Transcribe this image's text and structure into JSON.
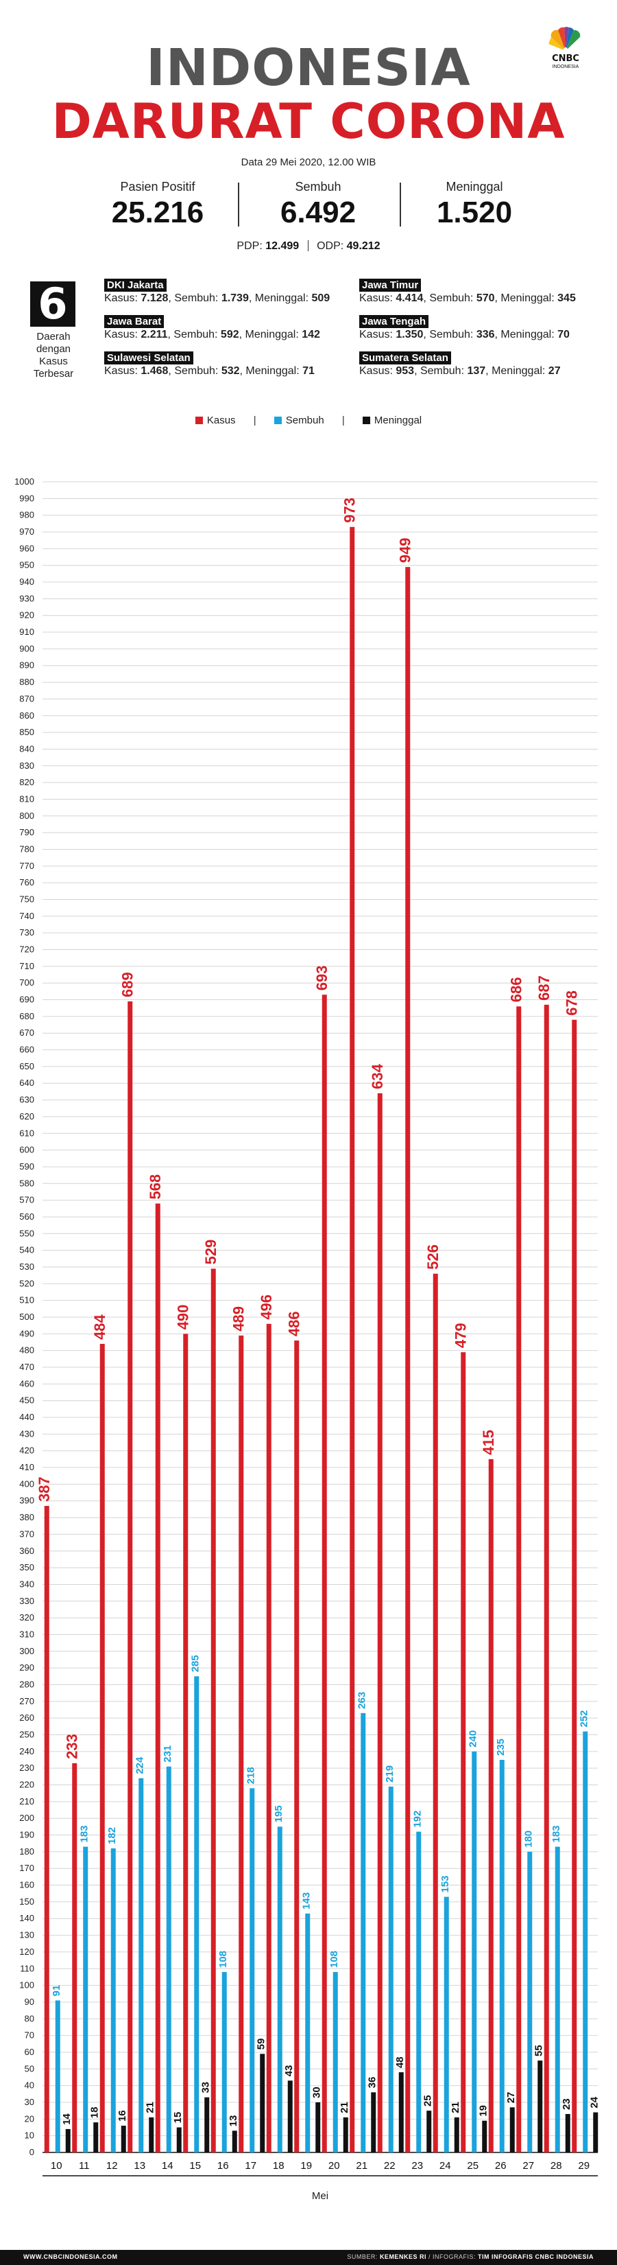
{
  "header": {
    "title_line1": "INDONESIA",
    "title_line2": "DARURAT CORONA",
    "date": "Data 29 Mei 2020, 12.00 WIB",
    "logo_text": "CNBC",
    "logo_subtext": "INDONESIA"
  },
  "stats": [
    {
      "label": "Pasien Positif",
      "value": "25.216"
    },
    {
      "label": "Sembuh",
      "value": "6.492"
    },
    {
      "label": "Meninggal",
      "value": "1.520"
    }
  ],
  "pdp_label": "PDP:",
  "pdp_value": "12.499",
  "odp_label": "ODP:",
  "odp_value": "49.212",
  "regions_count": "6",
  "regions_caption": [
    "Daerah",
    "dengan",
    "Kasus",
    "Terbesar"
  ],
  "regions": [
    {
      "name": "DKI Jakarta",
      "kasus": "7.128",
      "sembuh": "1.739",
      "meninggal": "509"
    },
    {
      "name": "Jawa Timur",
      "kasus": "4.414",
      "sembuh": "570",
      "meninggal": "345"
    },
    {
      "name": "Jawa Barat",
      "kasus": "2.211",
      "sembuh": "592",
      "meninggal": "142"
    },
    {
      "name": "Jawa Tengah",
      "kasus": "1.350",
      "sembuh": "336",
      "meninggal": "70"
    },
    {
      "name": "Sulawesi Selatan",
      "kasus": "1.468",
      "sembuh": "532",
      "meninggal": "71"
    },
    {
      "name": "Sumatera Selatan",
      "kasus": "953",
      "sembuh": "137",
      "meninggal": "27"
    }
  ],
  "region_labels": {
    "kasus": "Kasus:",
    "sembuh": "Sembuh:",
    "meninggal": "Meninggal:"
  },
  "chart_data": {
    "type": "bar",
    "categories": [
      "10",
      "11",
      "12",
      "13",
      "14",
      "15",
      "16",
      "17",
      "18",
      "19",
      "20",
      "21",
      "22",
      "23",
      "24",
      "25",
      "26",
      "27",
      "28",
      "29"
    ],
    "series": [
      {
        "name": "Kasus",
        "color": "#d71f27",
        "values": [
          387,
          233,
          484,
          689,
          568,
          490,
          529,
          489,
          496,
          486,
          693,
          973,
          634,
          949,
          526,
          479,
          415,
          686,
          687,
          678
        ]
      },
      {
        "name": "Sembuh",
        "color": "#1aa3dc",
        "values": [
          91,
          183,
          182,
          224,
          231,
          285,
          108,
          218,
          195,
          143,
          108,
          263,
          219,
          192,
          153,
          240,
          235,
          180,
          183,
          252
        ]
      },
      {
        "name": "Meninggal",
        "color": "#111111",
        "values": [
          14,
          18,
          16,
          21,
          15,
          33,
          13,
          59,
          43,
          30,
          21,
          36,
          48,
          25,
          21,
          19,
          27,
          55,
          23,
          24
        ]
      }
    ],
    "xlabel": "Mei",
    "ylabel": "",
    "ylim": [
      0,
      1000
    ],
    "ytick_step": 10,
    "grid": true,
    "legend": "top-center"
  },
  "footer": {
    "left": "WWW.CNBCINDONESIA.COM",
    "source_label": "SUMBER:",
    "source": "KEMENKES RI",
    "infographic_label": "/ INFOGRAFIS:",
    "infographic": "TIM INFOGRAFIS CNBC INDONESIA"
  }
}
